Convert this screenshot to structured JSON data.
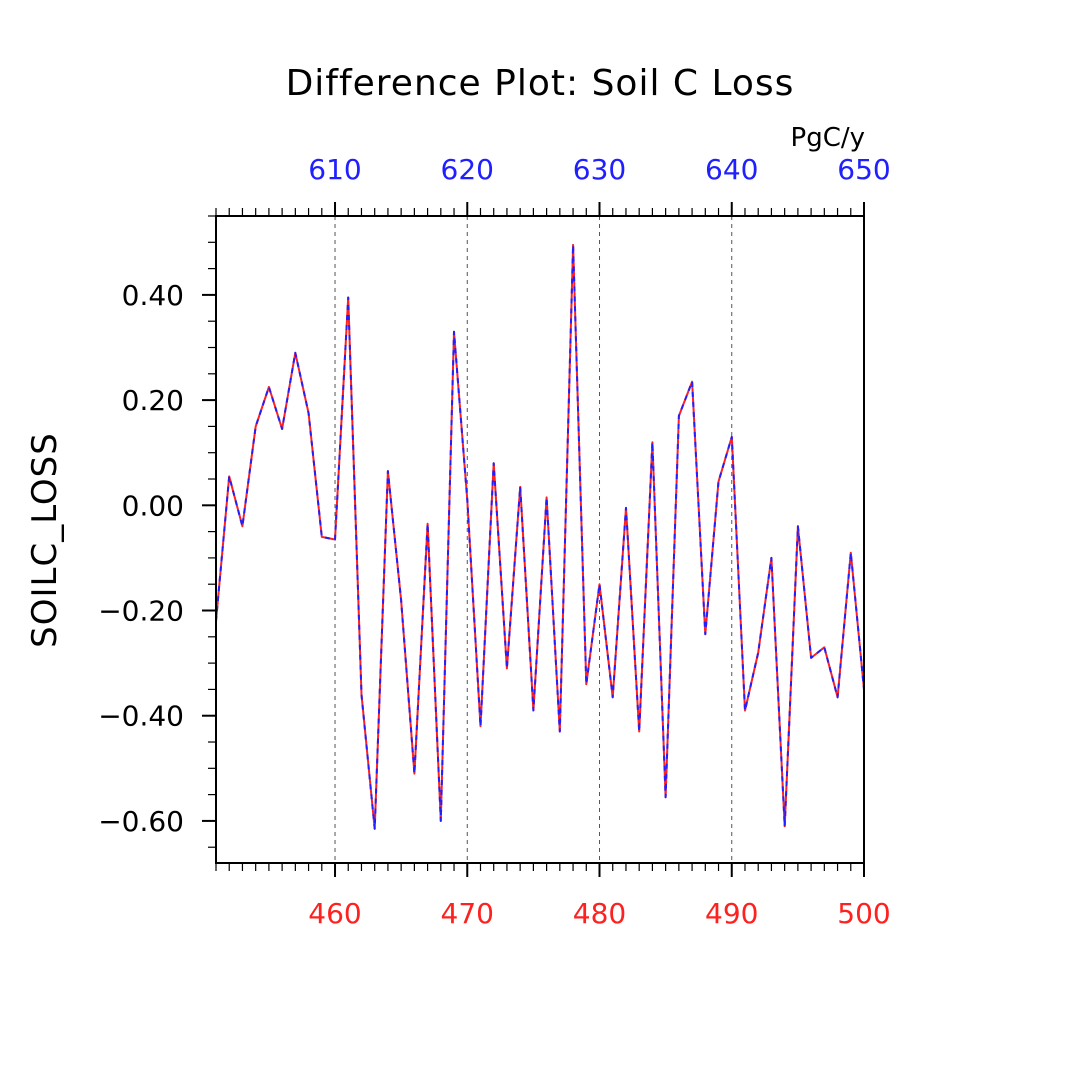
{
  "chart_data": {
    "type": "line",
    "title": "Difference Plot: Soil C Loss",
    "ylabel": "SOILC_LOSS",
    "units": "PgC/y",
    "xlim": [
      451,
      500
    ],
    "ylim": [
      -0.68,
      0.55
    ],
    "top_xlim": [
      601,
      650
    ],
    "yticks": [
      0.4,
      0.2,
      0.0,
      -0.2,
      -0.4,
      -0.6
    ],
    "ytick_labels": [
      "0.40",
      "0.20",
      "0.00",
      "−0.20",
      "−0.40",
      "−0.60"
    ],
    "bottom_xticks": [
      460,
      470,
      480,
      490,
      500
    ],
    "bottom_xtick_labels": [
      "460",
      "470",
      "480",
      "490",
      "500"
    ],
    "top_xticks": [
      610,
      620,
      630,
      640,
      650
    ],
    "top_xtick_labels": [
      "610",
      "620",
      "630",
      "640",
      "650"
    ],
    "grid": "vertical dashed at major x ticks",
    "x": [
      451,
      452,
      453,
      454,
      455,
      456,
      457,
      458,
      459,
      460,
      461,
      462,
      463,
      464,
      465,
      466,
      467,
      468,
      469,
      470,
      471,
      472,
      473,
      474,
      475,
      476,
      477,
      478,
      479,
      480,
      481,
      482,
      483,
      484,
      485,
      486,
      487,
      488,
      489,
      490,
      491,
      492,
      493,
      494,
      495,
      496,
      497,
      498,
      499,
      500
    ],
    "series": [
      {
        "color": "#ff2020",
        "values": [
          -0.22,
          0.055,
          -0.04,
          0.15,
          0.225,
          0.145,
          0.29,
          0.175,
          -0.06,
          -0.065,
          0.395,
          -0.36,
          -0.615,
          0.065,
          -0.18,
          -0.51,
          -0.035,
          -0.6,
          0.33,
          0.01,
          -0.42,
          0.08,
          -0.31,
          0.035,
          -0.39,
          0.015,
          -0.43,
          0.495,
          -0.34,
          -0.15,
          -0.365,
          -0.005,
          -0.43,
          0.12,
          -0.555,
          0.17,
          0.235,
          -0.245,
          0.045,
          0.13,
          -0.39,
          -0.28,
          -0.1,
          -0.61,
          -0.04,
          -0.29,
          -0.27,
          -0.365,
          -0.09,
          -0.35
        ]
      },
      {
        "color": "#2020ff",
        "values": [
          -0.22,
          0.055,
          -0.04,
          0.15,
          0.225,
          0.145,
          0.29,
          0.175,
          -0.06,
          -0.065,
          0.395,
          -0.36,
          -0.615,
          0.065,
          -0.18,
          -0.51,
          -0.035,
          -0.6,
          0.33,
          0.01,
          -0.42,
          0.08,
          -0.31,
          0.035,
          -0.39,
          0.015,
          -0.43,
          0.495,
          -0.34,
          -0.15,
          -0.365,
          -0.005,
          -0.43,
          0.12,
          -0.555,
          0.17,
          0.235,
          -0.245,
          0.045,
          0.13,
          -0.39,
          -0.28,
          -0.1,
          -0.61,
          -0.04,
          -0.29,
          -0.27,
          -0.365,
          -0.09,
          -0.35
        ]
      }
    ]
  }
}
